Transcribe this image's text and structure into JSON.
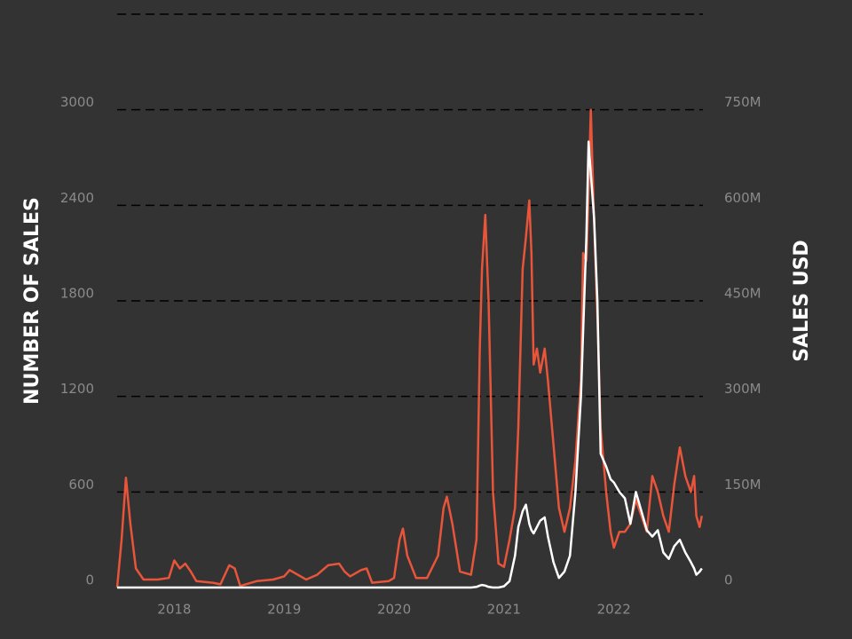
{
  "chart_data": {
    "type": "line",
    "y_label": "NUMBER OF SALES",
    "y2_label": "SALES USD",
    "x": [
      2017.48,
      2017.52,
      2017.56,
      2017.6,
      2017.65,
      2017.72,
      2017.85,
      2017.95,
      2018.0,
      2018.05,
      2018.1,
      2018.15,
      2018.2,
      2018.35,
      2018.42,
      2018.5,
      2018.55,
      2018.6,
      2018.75,
      2018.9,
      2019.0,
      2019.05,
      2019.1,
      2019.2,
      2019.3,
      2019.4,
      2019.5,
      2019.55,
      2019.6,
      2019.7,
      2019.75,
      2019.8,
      2019.95,
      2020.0,
      2020.05,
      2020.08,
      2020.12,
      2020.2,
      2020.3,
      2020.4,
      2020.45,
      2020.48,
      2020.53,
      2020.6,
      2020.7,
      2020.75,
      2020.78,
      2020.8,
      2020.83,
      2020.86,
      2020.9,
      2020.95,
      2021.0,
      2021.05,
      2021.1,
      2021.13,
      2021.17,
      2021.2,
      2021.23,
      2021.25,
      2021.27,
      2021.3,
      2021.33,
      2021.37,
      2021.4,
      2021.45,
      2021.5,
      2021.55,
      2021.6,
      2021.65,
      2021.7,
      2021.72,
      2021.75,
      2021.77,
      2021.79,
      2021.82,
      2021.85,
      2021.88,
      2021.93,
      2021.97,
      2022.0,
      2022.05,
      2022.1,
      2022.15,
      2022.2,
      2022.25,
      2022.3,
      2022.35,
      2022.4,
      2022.45,
      2022.5,
      2022.55,
      2022.6,
      2022.65,
      2022.7,
      2022.73,
      2022.75,
      2022.78,
      2022.8
    ],
    "series": [
      {
        "name": "NUMBER OF SALES",
        "color": "#e8553a",
        "axis": "y",
        "values": [
          0,
          300,
          690,
          400,
          120,
          50,
          50,
          60,
          170,
          120,
          150,
          100,
          40,
          30,
          20,
          140,
          120,
          10,
          40,
          50,
          70,
          110,
          90,
          50,
          80,
          140,
          150,
          100,
          70,
          110,
          120,
          30,
          40,
          60,
          300,
          370,
          200,
          60,
          60,
          200,
          500,
          570,
          400,
          100,
          80,
          300,
          1500,
          2000,
          2340,
          1800,
          600,
          150,
          130,
          300,
          500,
          1000,
          2000,
          2200,
          2430,
          2100,
          1400,
          1500,
          1350,
          1500,
          1300,
          900,
          500,
          350,
          500,
          800,
          1300,
          2100,
          2050,
          2500,
          3000,
          2300,
          1700,
          1000,
          600,
          350,
          250,
          350,
          350,
          400,
          550,
          450,
          350,
          700,
          600,
          450,
          350,
          650,
          880,
          700,
          600,
          700,
          450,
          380,
          450
        ]
      },
      {
        "name": "SALES USD",
        "color": "#ffffff",
        "axis": "y2",
        "values": [
          0,
          0,
          0,
          0,
          0,
          0,
          0,
          0,
          0,
          0,
          0,
          0,
          0,
          0,
          0,
          0,
          0,
          0,
          0,
          0,
          0,
          0,
          0,
          0,
          0,
          0,
          0,
          0,
          0,
          0,
          0,
          0,
          0,
          0,
          0,
          0,
          0,
          0,
          0,
          0,
          0,
          0,
          0,
          0,
          0,
          1000000,
          3000000,
          4000000,
          3000000,
          1000000,
          0,
          0,
          2000000,
          10000000,
          50000000,
          95000000,
          120000000,
          130000000,
          100000000,
          90000000,
          85000000,
          95000000,
          105000000,
          110000000,
          80000000,
          40000000,
          15000000,
          25000000,
          50000000,
          150000000,
          300000000,
          400000000,
          550000000,
          700000000,
          650000000,
          580000000,
          450000000,
          210000000,
          190000000,
          170000000,
          165000000,
          150000000,
          140000000,
          100000000,
          150000000,
          120000000,
          90000000,
          80000000,
          90000000,
          55000000,
          45000000,
          65000000,
          75000000,
          55000000,
          40000000,
          30000000,
          20000000,
          25000000,
          30000000
        ]
      }
    ],
    "xlim": [
      2017.48,
      2022.81
    ],
    "xticks": [
      2018,
      2019,
      2020,
      2021,
      2022
    ],
    "ylim": [
      0,
      3600
    ],
    "yticks": [
      0,
      600,
      1200,
      1800,
      2400,
      3000
    ],
    "y2lim": [
      0,
      900000000
    ],
    "y2ticks": [
      0,
      {
        "value": 150000000,
        "label": "150M"
      },
      {
        "value": 300000000,
        "label": "300M"
      },
      {
        "value": 450000000,
        "label": "450M"
      },
      {
        "value": 600000000,
        "label": "600M"
      },
      {
        "value": 750000000,
        "label": "750M"
      }
    ],
    "grid": true
  }
}
